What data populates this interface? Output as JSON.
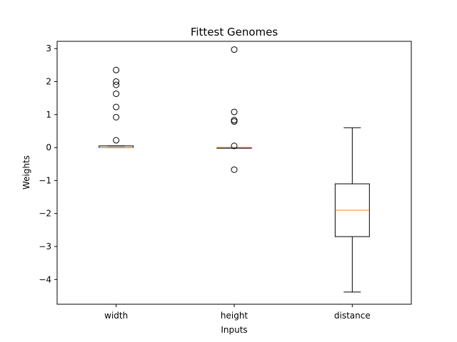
{
  "chart_data": {
    "type": "boxplot",
    "title": "Fittest Genomes",
    "xlabel": "Inputs",
    "ylabel": "Weights",
    "ylim": [
      -4.75,
      3.22
    ],
    "yticks": [
      3,
      2,
      1,
      0,
      -1,
      -2,
      -3,
      -4
    ],
    "ytick_labels": [
      "3",
      "2",
      "1",
      "0",
      "−1",
      "−2",
      "−3",
      "−4"
    ],
    "categories": [
      "width",
      "height",
      "distance"
    ],
    "boxes": [
      {
        "label": "width",
        "whisker_low": 0.0,
        "q1": 0.0,
        "median": 0.0,
        "q3": 0.05,
        "whisker_high": 0.05,
        "outliers": [
          2.35,
          2.0,
          1.9,
          1.63,
          1.23,
          0.92,
          0.22
        ]
      },
      {
        "label": "height",
        "whisker_low": 0.0,
        "q1": 0.0,
        "median": 0.0,
        "q3": 0.0,
        "whisker_high": 0.0,
        "outliers": [
          2.97,
          1.08,
          0.83,
          0.79,
          0.05,
          -0.67
        ]
      },
      {
        "label": "distance",
        "whisker_low": -4.38,
        "q1": -2.7,
        "median": -1.9,
        "q3": -1.1,
        "whisker_high": 0.6,
        "outliers": []
      }
    ],
    "grid": false,
    "colors": {
      "box": "#000000",
      "median": "#ff7f0e",
      "outlier_edge": "#000000"
    }
  }
}
